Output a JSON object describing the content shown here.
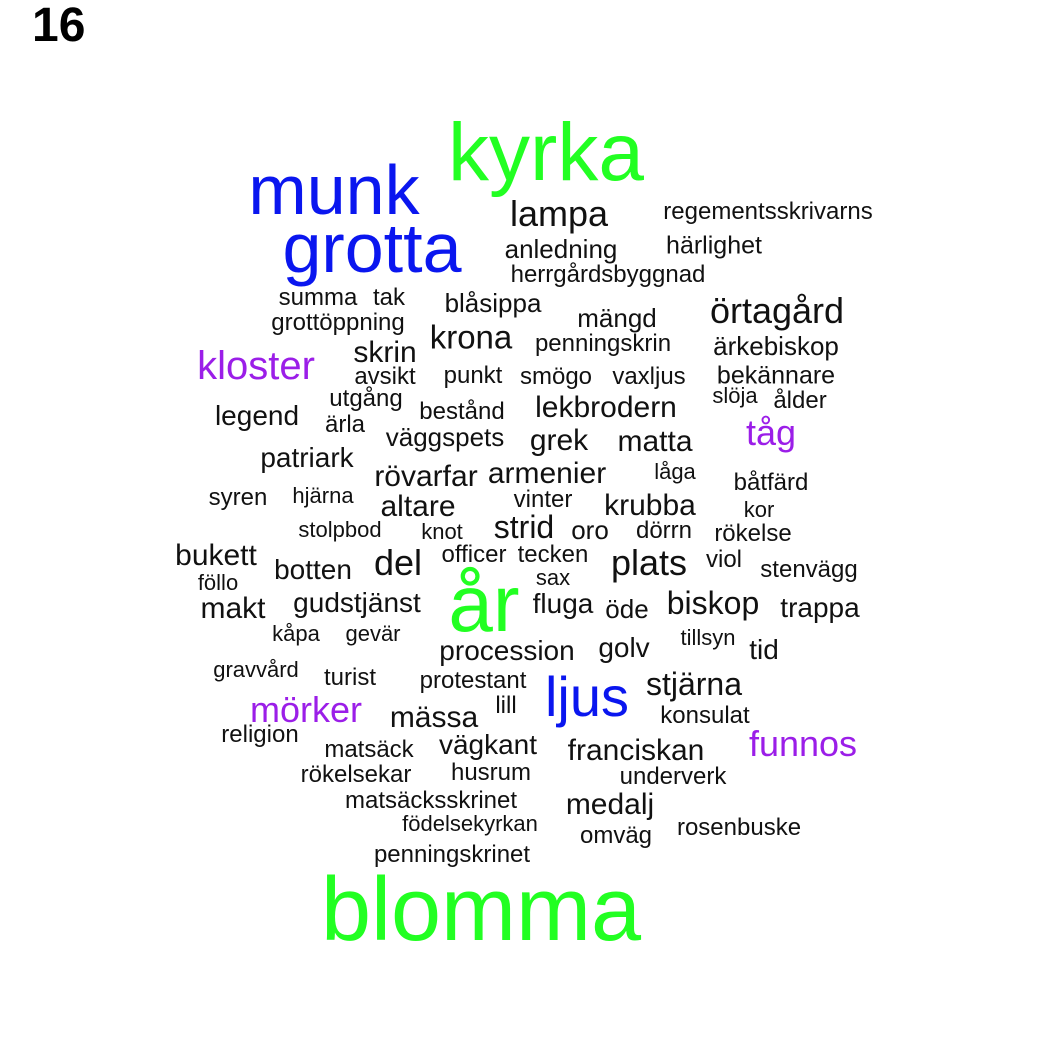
{
  "panel_label": "16",
  "colors": {
    "green": "#22ff22",
    "blue": "#0a16ef",
    "purple": "#9b1ee8",
    "black": "#111111"
  },
  "words": [
    {
      "text": "kyrka",
      "color": "green"
    },
    {
      "text": "munk",
      "color": "blue"
    },
    {
      "text": "grotta",
      "color": "blue"
    },
    {
      "text": "lampa",
      "color": "black"
    },
    {
      "text": "regementsskrivarns",
      "color": "black"
    },
    {
      "text": "anledning",
      "color": "black"
    },
    {
      "text": "härlighet",
      "color": "black"
    },
    {
      "text": "herrgårdsbyggnad",
      "color": "black"
    },
    {
      "text": "summa",
      "color": "black"
    },
    {
      "text": "tak",
      "color": "black"
    },
    {
      "text": "blåsippa",
      "color": "black"
    },
    {
      "text": "örtagård",
      "color": "black"
    },
    {
      "text": "mängd",
      "color": "black"
    },
    {
      "text": "grottöppning",
      "color": "black"
    },
    {
      "text": "krona",
      "color": "black"
    },
    {
      "text": "penningskrin",
      "color": "black"
    },
    {
      "text": "ärkebiskop",
      "color": "black"
    },
    {
      "text": "kloster",
      "color": "purple"
    },
    {
      "text": "skrin",
      "color": "black"
    },
    {
      "text": "avsikt",
      "color": "black"
    },
    {
      "text": "punkt",
      "color": "black"
    },
    {
      "text": "smögo",
      "color": "black"
    },
    {
      "text": "vaxljus",
      "color": "black"
    },
    {
      "text": "bekännare",
      "color": "black"
    },
    {
      "text": "slöja",
      "color": "black"
    },
    {
      "text": "ålder",
      "color": "black"
    },
    {
      "text": "utgång",
      "color": "black"
    },
    {
      "text": "bestånd",
      "color": "black"
    },
    {
      "text": "lekbrodern",
      "color": "black"
    },
    {
      "text": "legend",
      "color": "black"
    },
    {
      "text": "ärla",
      "color": "black"
    },
    {
      "text": "väggspets",
      "color": "black"
    },
    {
      "text": "grek",
      "color": "black"
    },
    {
      "text": "matta",
      "color": "black"
    },
    {
      "text": "tåg",
      "color": "purple"
    },
    {
      "text": "patriark",
      "color": "black"
    },
    {
      "text": "rövarfar",
      "color": "black"
    },
    {
      "text": "armenier",
      "color": "black"
    },
    {
      "text": "låga",
      "color": "black"
    },
    {
      "text": "båtfärd",
      "color": "black"
    },
    {
      "text": "syren",
      "color": "black"
    },
    {
      "text": "hjärna",
      "color": "black"
    },
    {
      "text": "altare",
      "color": "black"
    },
    {
      "text": "vinter",
      "color": "black"
    },
    {
      "text": "krubba",
      "color": "black"
    },
    {
      "text": "kor",
      "color": "black"
    },
    {
      "text": "stolpbod",
      "color": "black"
    },
    {
      "text": "knot",
      "color": "black"
    },
    {
      "text": "strid",
      "color": "black"
    },
    {
      "text": "oro",
      "color": "black"
    },
    {
      "text": "dörrn",
      "color": "black"
    },
    {
      "text": "rökelse",
      "color": "black"
    },
    {
      "text": "bukett",
      "color": "black"
    },
    {
      "text": "del",
      "color": "black"
    },
    {
      "text": "officer",
      "color": "black"
    },
    {
      "text": "tecken",
      "color": "black"
    },
    {
      "text": "plats",
      "color": "black"
    },
    {
      "text": "viol",
      "color": "black"
    },
    {
      "text": "botten",
      "color": "black"
    },
    {
      "text": "sax",
      "color": "black"
    },
    {
      "text": "stenvägg",
      "color": "black"
    },
    {
      "text": "föllo",
      "color": "black"
    },
    {
      "text": "år",
      "color": "green"
    },
    {
      "text": "makt",
      "color": "black"
    },
    {
      "text": "gudstjänst",
      "color": "black"
    },
    {
      "text": "fluga",
      "color": "black"
    },
    {
      "text": "öde",
      "color": "black"
    },
    {
      "text": "biskop",
      "color": "black"
    },
    {
      "text": "trappa",
      "color": "black"
    },
    {
      "text": "kåpa",
      "color": "black"
    },
    {
      "text": "gevär",
      "color": "black"
    },
    {
      "text": "tillsyn",
      "color": "black"
    },
    {
      "text": "procession",
      "color": "black"
    },
    {
      "text": "golv",
      "color": "black"
    },
    {
      "text": "tid",
      "color": "black"
    },
    {
      "text": "gravvård",
      "color": "black"
    },
    {
      "text": "turist",
      "color": "black"
    },
    {
      "text": "protestant",
      "color": "black"
    },
    {
      "text": "ljus",
      "color": "blue"
    },
    {
      "text": "stjärna",
      "color": "black"
    },
    {
      "text": "mörker",
      "color": "purple"
    },
    {
      "text": "mässa",
      "color": "black"
    },
    {
      "text": "lill",
      "color": "black"
    },
    {
      "text": "konsulat",
      "color": "black"
    },
    {
      "text": "religion",
      "color": "black"
    },
    {
      "text": "funnos",
      "color": "purple"
    },
    {
      "text": "matsäck",
      "color": "black"
    },
    {
      "text": "vägkant",
      "color": "black"
    },
    {
      "text": "franciskan",
      "color": "black"
    },
    {
      "text": "rökelsekar",
      "color": "black"
    },
    {
      "text": "husrum",
      "color": "black"
    },
    {
      "text": "underverk",
      "color": "black"
    },
    {
      "text": "matsäcksskrinet",
      "color": "black"
    },
    {
      "text": "medalj",
      "color": "black"
    },
    {
      "text": "födelsekyrkan",
      "color": "black"
    },
    {
      "text": "omväg",
      "color": "black"
    },
    {
      "text": "rosenbuske",
      "color": "black"
    },
    {
      "text": "penningskrinet",
      "color": "black"
    },
    {
      "text": "blomma",
      "color": "green"
    }
  ]
}
